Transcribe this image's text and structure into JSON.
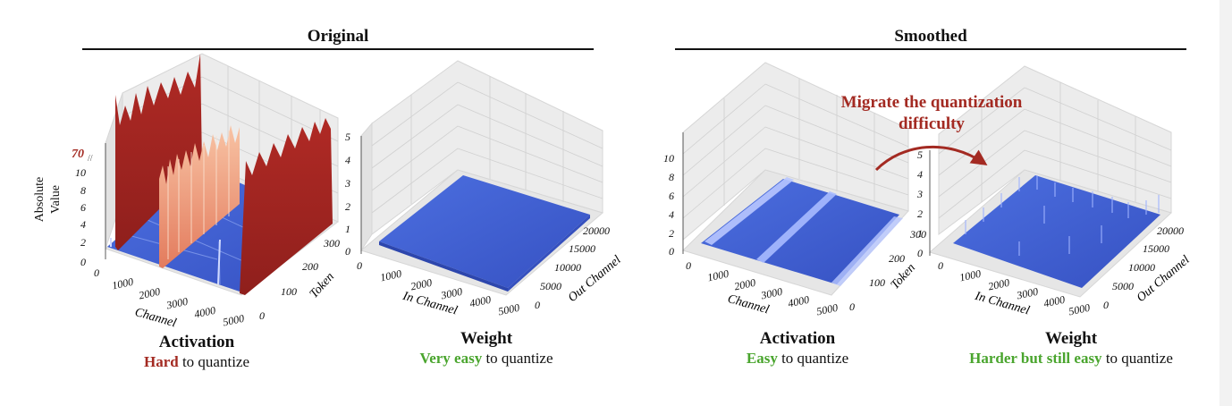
{
  "sections": {
    "original": "Original",
    "smoothed": "Smoothed"
  },
  "annotation": "Migrate the quantization difficulty",
  "colors": {
    "hard_red": "#a32a22",
    "easy_green": "#4aa52e",
    "surface_blue": "#3d5fd4"
  },
  "captions": [
    {
      "title": "Activation",
      "highlight": "Hard",
      "highlight_color": "red",
      "rest": "to quantize"
    },
    {
      "title": "Weight",
      "highlight": "Very easy",
      "highlight_color": "green",
      "rest": "to quantize"
    },
    {
      "title": "Activation",
      "highlight": "Easy",
      "highlight_color": "green",
      "rest": "to quantize"
    },
    {
      "title": "Weight",
      "highlight": "Harder but still easy",
      "highlight_color": "green",
      "rest": "to quantize"
    }
  ],
  "chart_data": [
    {
      "type": "surface3d",
      "name": "original-activation",
      "zlabel": "Absolute Value",
      "xlabel": "Channel",
      "ylabel": "Token",
      "x_ticks": [
        "0",
        "1000",
        "2000",
        "3000",
        "4000",
        "5000"
      ],
      "y_ticks": [
        "0",
        "100",
        "200",
        "300"
      ],
      "z_ticks": [
        "0",
        "2",
        "4",
        "6",
        "8",
        "10",
        "70"
      ],
      "z_break": true,
      "outlier_channels": [
        {
          "channel": 100,
          "value": 70,
          "color": "red"
        },
        {
          "channel": 1700,
          "value": 10,
          "color": "orange"
        },
        {
          "channel": 5000,
          "value": 70,
          "color": "red"
        }
      ],
      "baseline_value": 0.5
    },
    {
      "type": "surface3d",
      "name": "original-weight",
      "xlabel": "In Channel",
      "ylabel": "Out Channel",
      "x_ticks": [
        "0",
        "1000",
        "2000",
        "3000",
        "4000",
        "5000"
      ],
      "y_ticks": [
        "0",
        "5000",
        "10000",
        "15000",
        "20000"
      ],
      "z_ticks": [
        "0",
        "1",
        "2",
        "3",
        "4",
        "5"
      ],
      "baseline_value": 0.5
    },
    {
      "type": "surface3d",
      "name": "smoothed-activation",
      "xlabel": "Channel",
      "ylabel": "Token",
      "x_ticks": [
        "0",
        "1000",
        "2000",
        "3000",
        "4000",
        "5000"
      ],
      "y_ticks": [
        "0",
        "100",
        "200",
        "300"
      ],
      "z_ticks": [
        "0",
        "2",
        "4",
        "6",
        "8",
        "10"
      ],
      "baseline_value": 0.8
    },
    {
      "type": "surface3d",
      "name": "smoothed-weight",
      "xlabel": "In Channel",
      "ylabel": "Out Channel",
      "x_ticks": [
        "0",
        "1000",
        "2000",
        "3000",
        "4000",
        "5000"
      ],
      "y_ticks": [
        "0",
        "5000",
        "10000",
        "15000",
        "20000"
      ],
      "z_ticks": [
        "0",
        "1",
        "2",
        "3",
        "4",
        "5"
      ],
      "baseline_value": 0.8
    }
  ]
}
